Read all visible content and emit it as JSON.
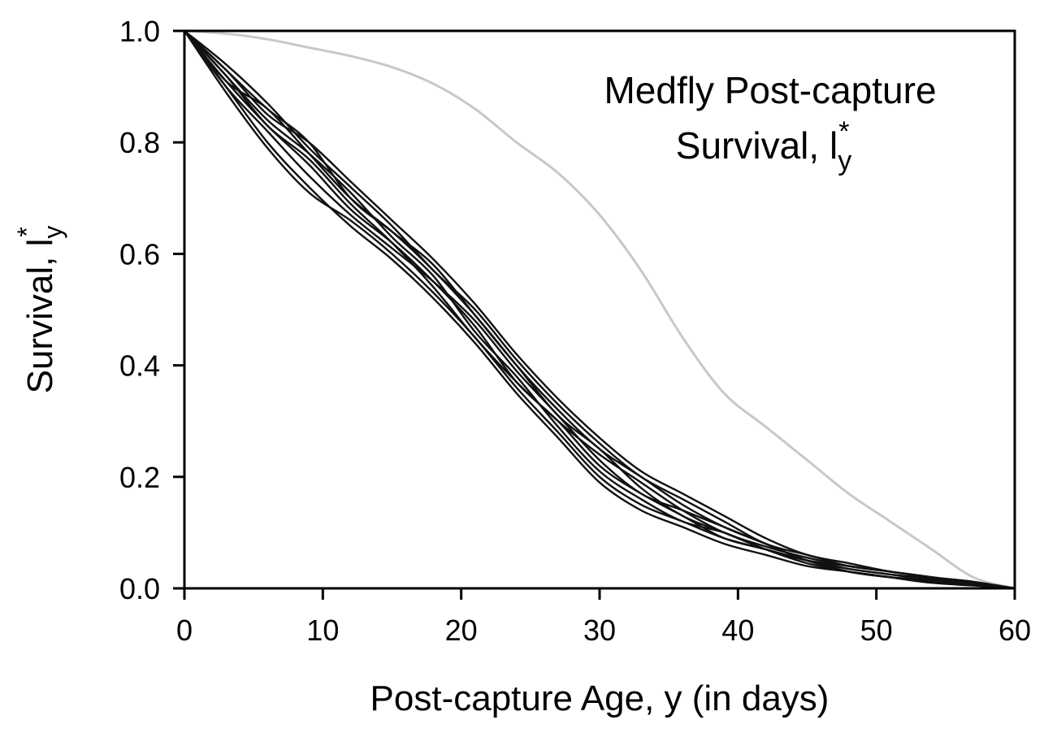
{
  "chart_data": {
    "type": "line",
    "title_lines": [
      "Medfly Post-capture",
      "Survival, l"
    ],
    "title_sub": "y",
    "title_sup": "*",
    "xlabel": "Post-capture Age, y (in days)",
    "ylabel": "Survival, l",
    "ylabel_sub": "y",
    "ylabel_sup": "*",
    "xlim": [
      0,
      60
    ],
    "ylim": [
      0,
      1
    ],
    "x_ticks": [
      0,
      10,
      20,
      30,
      40,
      50,
      60
    ],
    "x_tick_labels": [
      "0",
      "10",
      "20",
      "30",
      "40",
      "50",
      "60"
    ],
    "y_ticks": [
      0,
      0.2,
      0.4,
      0.6,
      0.8,
      1.0
    ],
    "y_tick_labels": [
      "0.0",
      "0.2",
      "0.4",
      "0.6",
      "0.8",
      "1.0"
    ],
    "grid": false,
    "legend": "none",
    "colors": {
      "dark_series": "#111111",
      "reference_series": "#c8c8c8"
    },
    "x": [
      0,
      3,
      6,
      9,
      12,
      15,
      18,
      21,
      24,
      27,
      30,
      33,
      36,
      39,
      42,
      45,
      48,
      51,
      54,
      57,
      60
    ],
    "series": [
      {
        "color": "#c8c8c8",
        "values": [
          1.0,
          0.995,
          0.985,
          0.97,
          0.955,
          0.935,
          0.905,
          0.86,
          0.8,
          0.745,
          0.67,
          0.57,
          0.45,
          0.35,
          0.29,
          0.23,
          0.17,
          0.12,
          0.07,
          0.02,
          0.0
        ]
      },
      {
        "color": "#111111",
        "values": [
          1.0,
          0.93,
          0.86,
          0.8,
          0.7,
          0.64,
          0.58,
          0.49,
          0.4,
          0.32,
          0.25,
          0.2,
          0.15,
          0.11,
          0.08,
          0.05,
          0.03,
          0.02,
          0.015,
          0.01,
          0.0
        ]
      },
      {
        "color": "#111111",
        "values": [
          1.0,
          0.91,
          0.83,
          0.76,
          0.68,
          0.62,
          0.55,
          0.47,
          0.37,
          0.3,
          0.22,
          0.17,
          0.13,
          0.09,
          0.07,
          0.05,
          0.03,
          0.02,
          0.01,
          0.008,
          0.0
        ]
      },
      {
        "color": "#111111",
        "values": [
          1.0,
          0.9,
          0.8,
          0.72,
          0.65,
          0.59,
          0.52,
          0.44,
          0.35,
          0.27,
          0.19,
          0.14,
          0.11,
          0.08,
          0.06,
          0.04,
          0.03,
          0.02,
          0.01,
          0.005,
          0.0
        ]
      },
      {
        "color": "#111111",
        "values": [
          1.0,
          0.94,
          0.87,
          0.79,
          0.72,
          0.65,
          0.57,
          0.5,
          0.41,
          0.33,
          0.26,
          0.2,
          0.16,
          0.12,
          0.08,
          0.06,
          0.04,
          0.03,
          0.02,
          0.01,
          0.0
        ]
      },
      {
        "color": "#111111",
        "values": [
          1.0,
          0.92,
          0.84,
          0.78,
          0.71,
          0.63,
          0.56,
          0.46,
          0.38,
          0.29,
          0.21,
          0.16,
          0.12,
          0.1,
          0.07,
          0.05,
          0.04,
          0.03,
          0.02,
          0.01,
          0.0
        ]
      },
      {
        "color": "#111111",
        "values": [
          1.0,
          0.89,
          0.79,
          0.71,
          0.66,
          0.6,
          0.53,
          0.45,
          0.36,
          0.28,
          0.2,
          0.15,
          0.12,
          0.09,
          0.07,
          0.05,
          0.035,
          0.025,
          0.015,
          0.008,
          0.0
        ]
      },
      {
        "color": "#111111",
        "values": [
          1.0,
          0.93,
          0.85,
          0.8,
          0.73,
          0.66,
          0.59,
          0.51,
          0.42,
          0.34,
          0.27,
          0.21,
          0.17,
          0.13,
          0.09,
          0.06,
          0.045,
          0.03,
          0.02,
          0.01,
          0.0
        ]
      },
      {
        "color": "#111111",
        "values": [
          1.0,
          0.9,
          0.82,
          0.74,
          0.67,
          0.61,
          0.55,
          0.48,
          0.39,
          0.31,
          0.23,
          0.17,
          0.14,
          0.11,
          0.08,
          0.05,
          0.035,
          0.025,
          0.018,
          0.01,
          0.0
        ]
      },
      {
        "color": "#111111",
        "values": [
          1.0,
          0.92,
          0.83,
          0.77,
          0.69,
          0.62,
          0.54,
          0.45,
          0.37,
          0.3,
          0.24,
          0.19,
          0.14,
          0.1,
          0.075,
          0.055,
          0.04,
          0.03,
          0.02,
          0.012,
          0.0
        ]
      },
      {
        "color": "#111111",
        "values": [
          1.0,
          0.91,
          0.86,
          0.78,
          0.7,
          0.64,
          0.57,
          0.49,
          0.4,
          0.31,
          0.25,
          0.18,
          0.13,
          0.1,
          0.07,
          0.045,
          0.03,
          0.02,
          0.013,
          0.007,
          0.0
        ]
      }
    ]
  }
}
